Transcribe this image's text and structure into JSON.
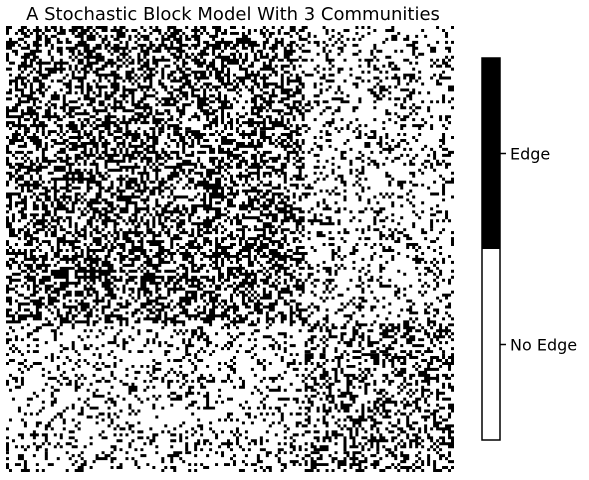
{
  "chart_data": {
    "type": "heatmap",
    "title": "A Stochastic Block Model With 3 Communities",
    "xlabel": "",
    "ylabel": "",
    "grid": false,
    "n_nodes": 150,
    "communities": [
      {
        "name": "",
        "size": 50
      },
      {
        "name": "",
        "size": 50
      },
      {
        "name": "",
        "size": 50
      }
    ],
    "block_probabilities": [
      [
        0.5,
        0.5,
        0.2
      ],
      [
        0.5,
        0.5,
        0.2
      ],
      [
        0.2,
        0.2,
        0.4
      ]
    ],
    "colorbar": {
      "placement": "right",
      "entries": [
        {
          "label": "Edge",
          "value": 1,
          "color": "#000000"
        },
        {
          "label": "No Edge",
          "value": 0,
          "color": "#ffffff"
        }
      ]
    }
  }
}
